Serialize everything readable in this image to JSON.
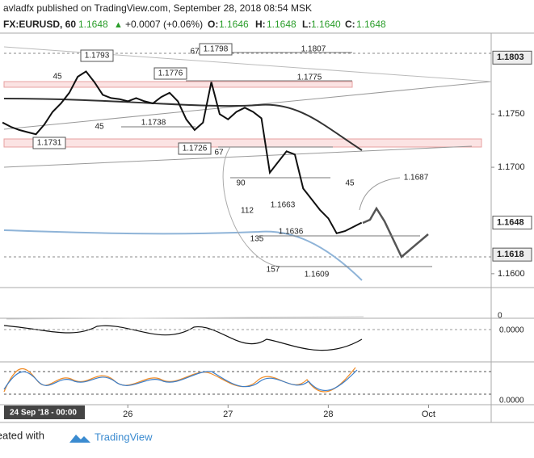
{
  "header": {
    "publisher": "avladfx published on TradingView.com, September 28, 2018 08:54 MSK",
    "symbol": "FX:EURUSD, 60",
    "last": "1.1648",
    "change_arrow": "▲",
    "change": "+0.0007 (+0.06%)",
    "o_label": "O:",
    "o": "1.1646",
    "h_label": "H:",
    "h": "1.1648",
    "l_label": "L:",
    "l": "1.1640",
    "c_label": "C:",
    "c": "1.1648"
  },
  "chart_data": {
    "type": "line",
    "color": "#111111",
    "x": [
      18,
      20,
      22,
      24,
      26,
      28,
      30,
      32,
      34,
      36,
      38,
      40,
      42,
      44,
      46,
      48,
      50,
      52,
      54,
      56,
      58,
      60,
      62,
      64,
      66,
      68,
      70,
      72,
      74,
      76,
      78,
      80,
      82,
      84,
      86,
      88,
      90,
      92,
      94,
      96,
      98,
      100,
      102,
      104
    ],
    "values": [
      1.1742,
      1.1738,
      1.1735,
      1.1733,
      1.1731,
      1.174,
      1.1752,
      1.176,
      1.177,
      1.1785,
      1.179,
      1.178,
      1.1768,
      1.1765,
      1.1764,
      1.1762,
      1.1765,
      1.1762,
      1.176,
      1.1766,
      1.177,
      1.1762,
      1.1745,
      1.1735,
      1.1742,
      1.178,
      1.175,
      1.1745,
      1.1752,
      1.1756,
      1.1752,
      1.1746,
      1.1695,
      1.1705,
      1.1715,
      1.1712,
      1.168,
      1.167,
      1.166,
      1.1652,
      1.1638,
      1.164,
      1.1644,
      1.1648
    ],
    "xlim": [
      17.4,
      135
    ],
    "xticks": [
      {
        "value": 48,
        "label": "26"
      },
      {
        "value": 72,
        "label": "27"
      },
      {
        "value": 96,
        "label": "28"
      },
      {
        "value": 120,
        "label": "Oct"
      }
    ],
    "ylim": [
      1.1587,
      1.1826
    ],
    "yticks": [
      {
        "value": 1.175,
        "label": "1.1750"
      },
      {
        "value": 1.17,
        "label": "1.1700"
      },
      {
        "value": 1.16,
        "label": "1.1600"
      }
    ],
    "price_labels": [
      {
        "value": 1.1803,
        "label": "1.1803"
      },
      {
        "value": 1.1648,
        "label": "1.1648"
      },
      {
        "value": 1.1618,
        "label": "1.1618"
      }
    ],
    "annotations": [
      "1.1793",
      "1.1798",
      "1.1776",
      "1.1731",
      "1.1726",
      "1.1807",
      "1.1775",
      "1.1738",
      "1.1663",
      "1.1636",
      "1.1609",
      "1.1687",
      "45",
      "67",
      "45",
      "67",
      "90",
      "112",
      "135",
      "157",
      "45"
    ],
    "indicator_labels": [
      "0",
      "0.0000",
      "0.0000"
    ],
    "crosshair_label": "24 Sep '18 - 00:00"
  },
  "footer": {
    "created": "Created with",
    "brand": "TradingView"
  }
}
